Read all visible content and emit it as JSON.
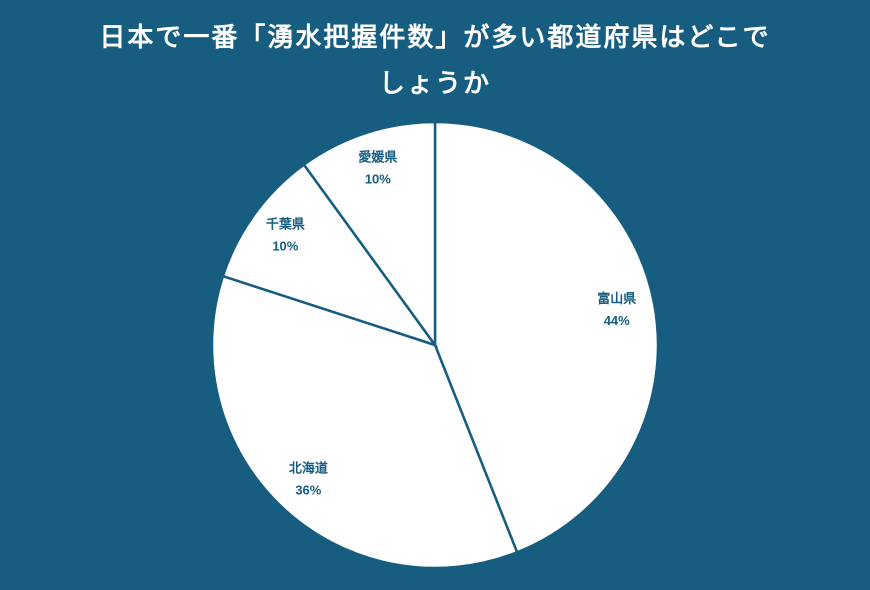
{
  "chart_data": {
    "type": "pie",
    "title": "日本で一番「湧水把握件数」が多い都道府県はどこでしょうか",
    "categories": [
      "富山県",
      "北海道",
      "千葉県",
      "愛媛県"
    ],
    "values": [
      44,
      36,
      10,
      10
    ],
    "value_labels": [
      "44%",
      "36%",
      "10%",
      "10%"
    ],
    "color": "#ffffff"
  }
}
